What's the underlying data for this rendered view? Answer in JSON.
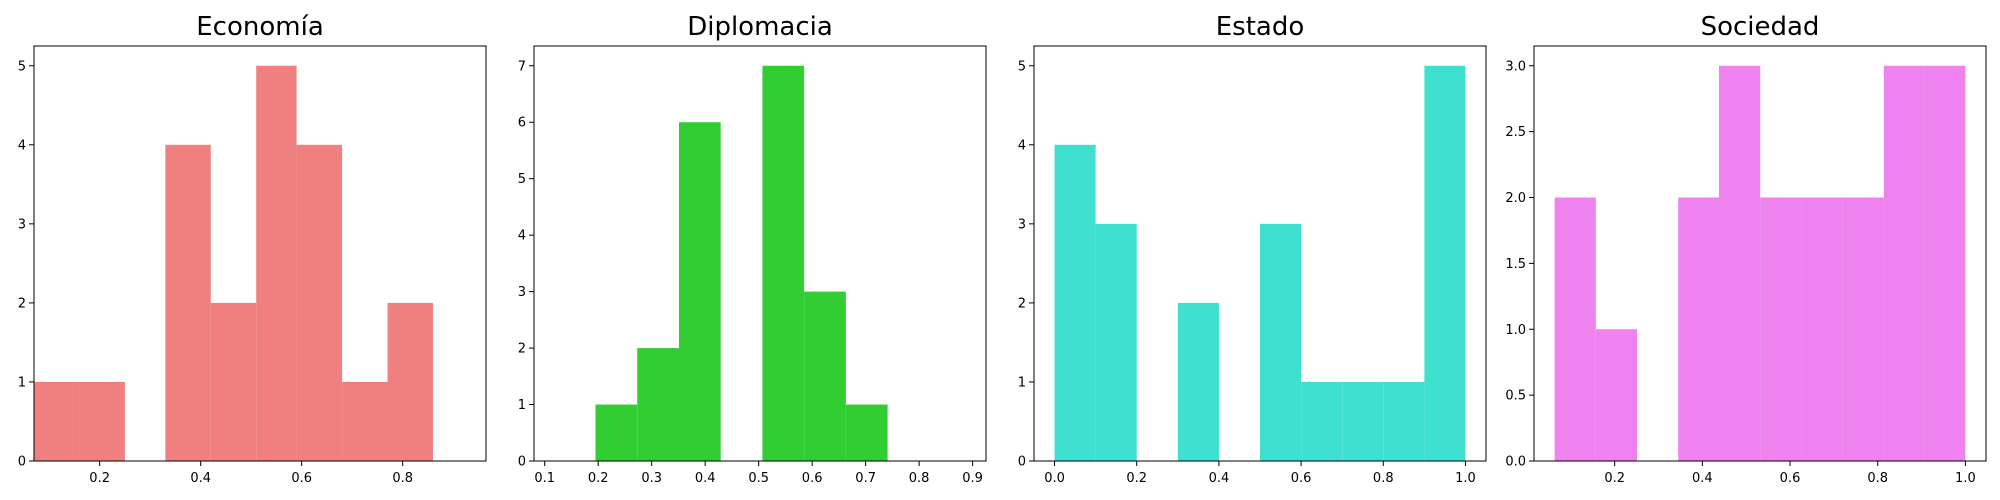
{
  "chart_data": [
    {
      "type": "bar",
      "title": "Economía",
      "color": "#f08080",
      "bins": [
        {
          "x0": 0.07,
          "x1": 0.16,
          "value": 1
        },
        {
          "x0": 0.16,
          "x1": 0.25,
          "value": 1
        },
        {
          "x0": 0.33,
          "x1": 0.42,
          "value": 4
        },
        {
          "x0": 0.42,
          "x1": 0.51,
          "value": 2
        },
        {
          "x0": 0.51,
          "x1": 0.59,
          "value": 5
        },
        {
          "x0": 0.59,
          "x1": 0.68,
          "value": 4
        },
        {
          "x0": 0.68,
          "x1": 0.77,
          "value": 1
        },
        {
          "x0": 0.77,
          "x1": 0.86,
          "value": 2
        }
      ],
      "xlim": [
        0.07,
        0.965
      ],
      "ylim": [
        0,
        5.25
      ],
      "xticks": [
        0.2,
        0.4,
        0.6,
        0.8
      ],
      "xtick_labels": [
        "0.2",
        "0.4",
        "0.6",
        "0.8"
      ],
      "yticks": [
        0,
        1,
        2,
        3,
        4,
        5
      ],
      "ytick_labels": [
        "0",
        "1",
        "2",
        "3",
        "4",
        "5"
      ]
    },
    {
      "type": "bar",
      "title": "Diplomacia",
      "color": "#32cd32",
      "bins": [
        {
          "x0": 0.195,
          "x1": 0.273,
          "value": 1
        },
        {
          "x0": 0.273,
          "x1": 0.351,
          "value": 2
        },
        {
          "x0": 0.351,
          "x1": 0.429,
          "value": 6
        },
        {
          "x0": 0.507,
          "x1": 0.585,
          "value": 7
        },
        {
          "x0": 0.585,
          "x1": 0.663,
          "value": 3
        },
        {
          "x0": 0.663,
          "x1": 0.741,
          "value": 1
        }
      ],
      "xlim": [
        0.08,
        0.925
      ],
      "ylim": [
        0,
        7.35
      ],
      "xticks": [
        0.1,
        0.2,
        0.3,
        0.4,
        0.5,
        0.6,
        0.7,
        0.8,
        0.9
      ],
      "xtick_labels": [
        "0.1",
        "0.2",
        "0.3",
        "0.4",
        "0.5",
        "0.6",
        "0.7",
        "0.8",
        "0.9"
      ],
      "yticks": [
        0,
        1,
        2,
        3,
        4,
        5,
        6,
        7
      ],
      "ytick_labels": [
        "0",
        "1",
        "2",
        "3",
        "4",
        "5",
        "6",
        "7"
      ]
    },
    {
      "type": "bar",
      "title": "Estado",
      "color": "#40e0d0",
      "bins": [
        {
          "x0": 0.0,
          "x1": 0.1,
          "value": 4
        },
        {
          "x0": 0.1,
          "x1": 0.2,
          "value": 3
        },
        {
          "x0": 0.3,
          "x1": 0.4,
          "value": 2
        },
        {
          "x0": 0.5,
          "x1": 0.6,
          "value": 3
        },
        {
          "x0": 0.6,
          "x1": 0.7,
          "value": 1
        },
        {
          "x0": 0.7,
          "x1": 0.8,
          "value": 1
        },
        {
          "x0": 0.8,
          "x1": 0.9,
          "value": 1
        },
        {
          "x0": 0.9,
          "x1": 1.0,
          "value": 5
        }
      ],
      "xlim": [
        -0.05,
        1.05
      ],
      "ylim": [
        0,
        5.25
      ],
      "xticks": [
        0.0,
        0.2,
        0.4,
        0.6,
        0.8,
        1.0
      ],
      "xtick_labels": [
        "0.0",
        "0.2",
        "0.4",
        "0.6",
        "0.8",
        "1.0"
      ],
      "yticks": [
        0,
        1,
        2,
        3,
        4,
        5
      ],
      "ytick_labels": [
        "0",
        "1",
        "2",
        "3",
        "4",
        "5"
      ]
    },
    {
      "type": "bar",
      "title": "Sociedad",
      "color": "#ee82ee",
      "bins": [
        {
          "x0": 0.063,
          "x1": 0.157,
          "value": 2
        },
        {
          "x0": 0.157,
          "x1": 0.251,
          "value": 1
        },
        {
          "x0": 0.345,
          "x1": 0.438,
          "value": 2
        },
        {
          "x0": 0.438,
          "x1": 0.532,
          "value": 3
        },
        {
          "x0": 0.532,
          "x1": 0.626,
          "value": 2
        },
        {
          "x0": 0.626,
          "x1": 0.72,
          "value": 2
        },
        {
          "x0": 0.72,
          "x1": 0.814,
          "value": 2
        },
        {
          "x0": 0.814,
          "x1": 0.907,
          "value": 3
        },
        {
          "x0": 0.907,
          "x1": 1.0,
          "value": 3
        }
      ],
      "xlim": [
        0.016,
        1.047
      ],
      "ylim": [
        0,
        3.15
      ],
      "xticks": [
        0.2,
        0.4,
        0.6,
        0.8,
        1.0
      ],
      "xtick_labels": [
        "0.2",
        "0.4",
        "0.6",
        "0.8",
        "1.0"
      ],
      "yticks": [
        0.0,
        0.5,
        1.0,
        1.5,
        2.0,
        2.5,
        3.0
      ],
      "ytick_labels": [
        "0.0",
        "0.5",
        "1.0",
        "1.5",
        "2.0",
        "2.5",
        "3.0"
      ]
    }
  ]
}
